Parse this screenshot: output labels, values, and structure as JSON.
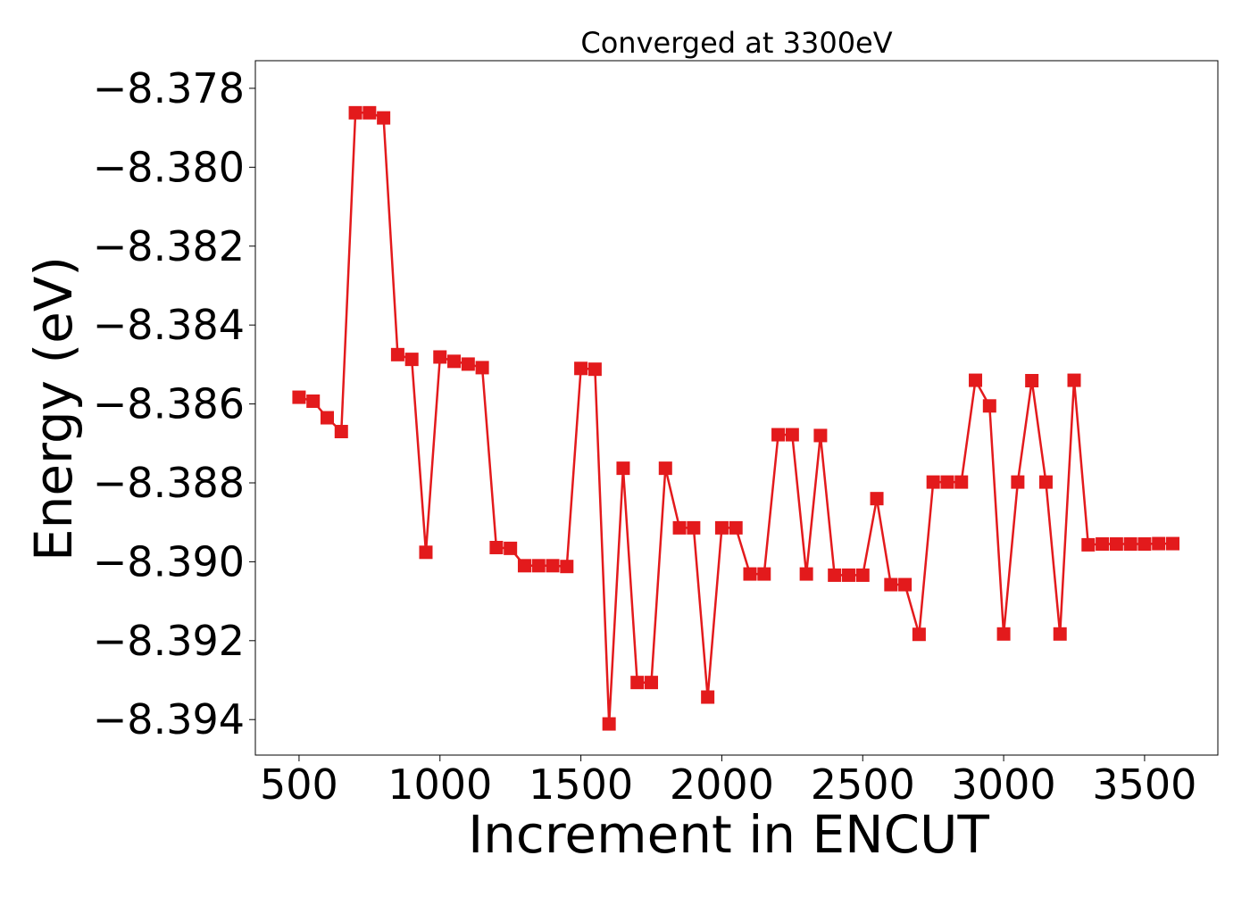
{
  "chart_data": {
    "type": "line",
    "title": "Converged at 3300eV",
    "xlabel": "Increment in ENCUT",
    "ylabel": "Energy (eV)",
    "xlim": [
      345,
      3760
    ],
    "ylim": [
      -8.3949,
      -8.3773
    ],
    "xticks": [
      {
        "value": 500,
        "label": "500"
      },
      {
        "value": 1000,
        "label": "1000"
      },
      {
        "value": 1500,
        "label": "1500"
      },
      {
        "value": 2000,
        "label": "2000"
      },
      {
        "value": 2500,
        "label": "2500"
      },
      {
        "value": 3000,
        "label": "3000"
      },
      {
        "value": 3500,
        "label": "3500"
      }
    ],
    "yticks": [
      {
        "value": -8.378,
        "label": "−8.378"
      },
      {
        "value": -8.38,
        "label": "−8.380"
      },
      {
        "value": -8.382,
        "label": "−8.382"
      },
      {
        "value": -8.384,
        "label": "−8.384"
      },
      {
        "value": -8.386,
        "label": "−8.386"
      },
      {
        "value": -8.388,
        "label": "−8.388"
      },
      {
        "value": -8.39,
        "label": "−8.390"
      },
      {
        "value": -8.392,
        "label": "−8.392"
      },
      {
        "value": -8.394,
        "label": "−8.394"
      }
    ],
    "grid": false,
    "legend": "none",
    "color": "#e31a1c",
    "marker": "square",
    "series": [
      {
        "x": [
          500,
          550,
          600,
          650,
          700,
          750,
          800,
          850,
          900,
          950,
          1000,
          1050,
          1100,
          1150,
          1200,
          1250,
          1300,
          1350,
          1400,
          1450,
          1500,
          1550,
          1600,
          1650,
          1700,
          1750,
          1800,
          1850,
          1900,
          1950,
          2000,
          2050,
          2100,
          2150,
          2200,
          2250,
          2300,
          2350,
          2400,
          2450,
          2500,
          2550,
          2600,
          2650,
          2700,
          2750,
          2800,
          2850,
          2900,
          2950,
          3000,
          3050,
          3100,
          3150,
          3200,
          3250,
          3300,
          3350,
          3400,
          3450,
          3500,
          3550,
          3600
        ],
        "y": [
          -8.38583,
          -8.38593,
          -8.38635,
          -8.3867,
          -8.37862,
          -8.37862,
          -8.37875,
          -8.38475,
          -8.38487,
          -8.38976,
          -8.38481,
          -8.38492,
          -8.38499,
          -8.38508,
          -8.38964,
          -8.38966,
          -8.3901,
          -8.3901,
          -8.3901,
          -8.39012,
          -8.3851,
          -8.38512,
          -8.39411,
          -8.38763,
          -8.39306,
          -8.39306,
          -8.38763,
          -8.38914,
          -8.38914,
          -8.39343,
          -8.38914,
          -8.38914,
          -8.39031,
          -8.39031,
          -8.38678,
          -8.38678,
          -8.39031,
          -8.3868,
          -8.39034,
          -8.39034,
          -8.39034,
          -8.3884,
          -8.39058,
          -8.39058,
          -8.39184,
          -8.38798,
          -8.38798,
          -8.38798,
          -8.3854,
          -8.38605,
          -8.39183,
          -8.38798,
          -8.38541,
          -8.38798,
          -8.39183,
          -8.3854,
          -8.38957,
          -8.38955,
          -8.38955,
          -8.38955,
          -8.38955,
          -8.38954,
          -8.38954
        ]
      }
    ]
  }
}
